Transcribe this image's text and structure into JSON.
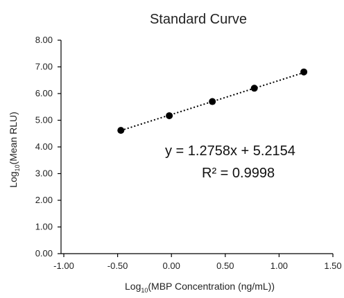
{
  "chart_data": {
    "type": "scatter",
    "title": "Standard Curve",
    "xlabel": {
      "prefix": "Log",
      "subscript": "10",
      "suffix": "(MBP Concentration (ng/mL))"
    },
    "ylabel": {
      "prefix": "Log",
      "subscript": "10",
      "suffix": "(Mean RLU)"
    },
    "xlim": [
      -1.0,
      1.5
    ],
    "ylim": [
      0.0,
      8.0
    ],
    "xticks": [
      -1.0,
      -0.5,
      0.0,
      0.5,
      1.0,
      1.5
    ],
    "yticks": [
      0.0,
      1.0,
      2.0,
      3.0,
      4.0,
      5.0,
      6.0,
      7.0,
      8.0
    ],
    "xtick_labels": [
      "-1.00",
      "-0.50",
      "0.00",
      "0.50",
      "1.00",
      "1.50"
    ],
    "ytick_labels": [
      "0.00",
      "1.00",
      "2.00",
      "3.00",
      "4.00",
      "5.00",
      "6.00",
      "7.00",
      "8.00"
    ],
    "grid": false,
    "legend": "none",
    "series": [
      {
        "x": [
          -0.47,
          -0.02,
          0.38,
          0.77,
          1.23
        ],
        "y": [
          4.62,
          5.17,
          5.7,
          6.2,
          6.81
        ]
      }
    ],
    "trendline": {
      "type": "linear",
      "slope": 1.2758,
      "intercept": 5.2154,
      "style": "dotted"
    },
    "annotations": [
      "y = 1.2758x + 5.2154",
      "R² = 0.9998"
    ],
    "colors": {
      "marker": "#000000",
      "axis": "#000000",
      "text": "#222222"
    }
  }
}
